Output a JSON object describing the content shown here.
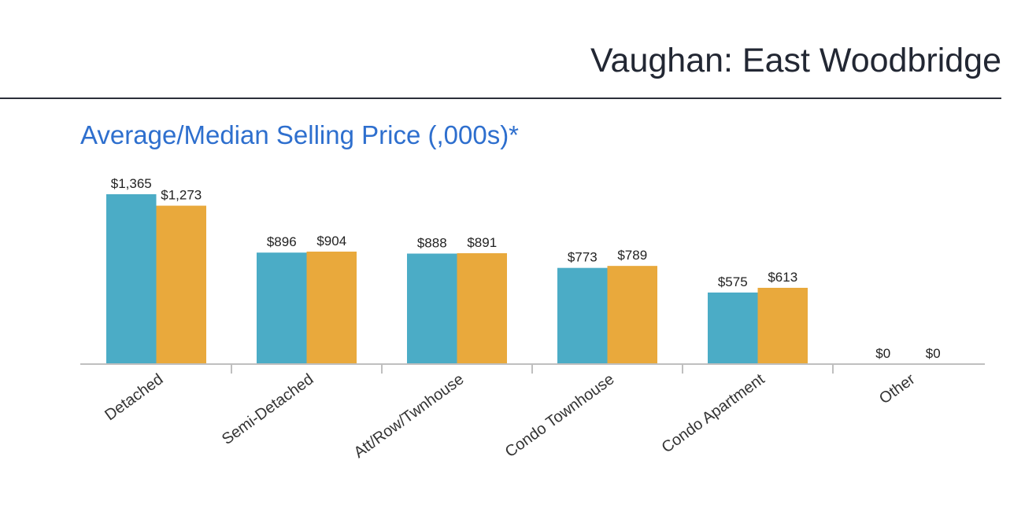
{
  "header": {
    "title": "Vaughan: East Woodbridge"
  },
  "chart_data": {
    "type": "bar",
    "title": "Average/Median Selling Price (,000s)*",
    "categories": [
      "Detached",
      "Semi-Detached",
      "Att/Row/Twnhouse",
      "Condo Townhouse",
      "Condo Apartment",
      "Other"
    ],
    "series": [
      {
        "values": [
          1365,
          896,
          888,
          773,
          575,
          0
        ],
        "labels": [
          "$1,365",
          "$896",
          "$888",
          "$773",
          "$575",
          "$0"
        ],
        "color": "#4bacc6"
      },
      {
        "values": [
          1273,
          904,
          891,
          789,
          613,
          0
        ],
        "labels": [
          "$1,273",
          "$904",
          "$891",
          "$789",
          "$613",
          "$0"
        ],
        "color": "#e9a93c"
      }
    ],
    "ylim": [
      0,
      1400
    ],
    "grid": false,
    "legend": "none",
    "axis_color": "#bfbfbf"
  }
}
